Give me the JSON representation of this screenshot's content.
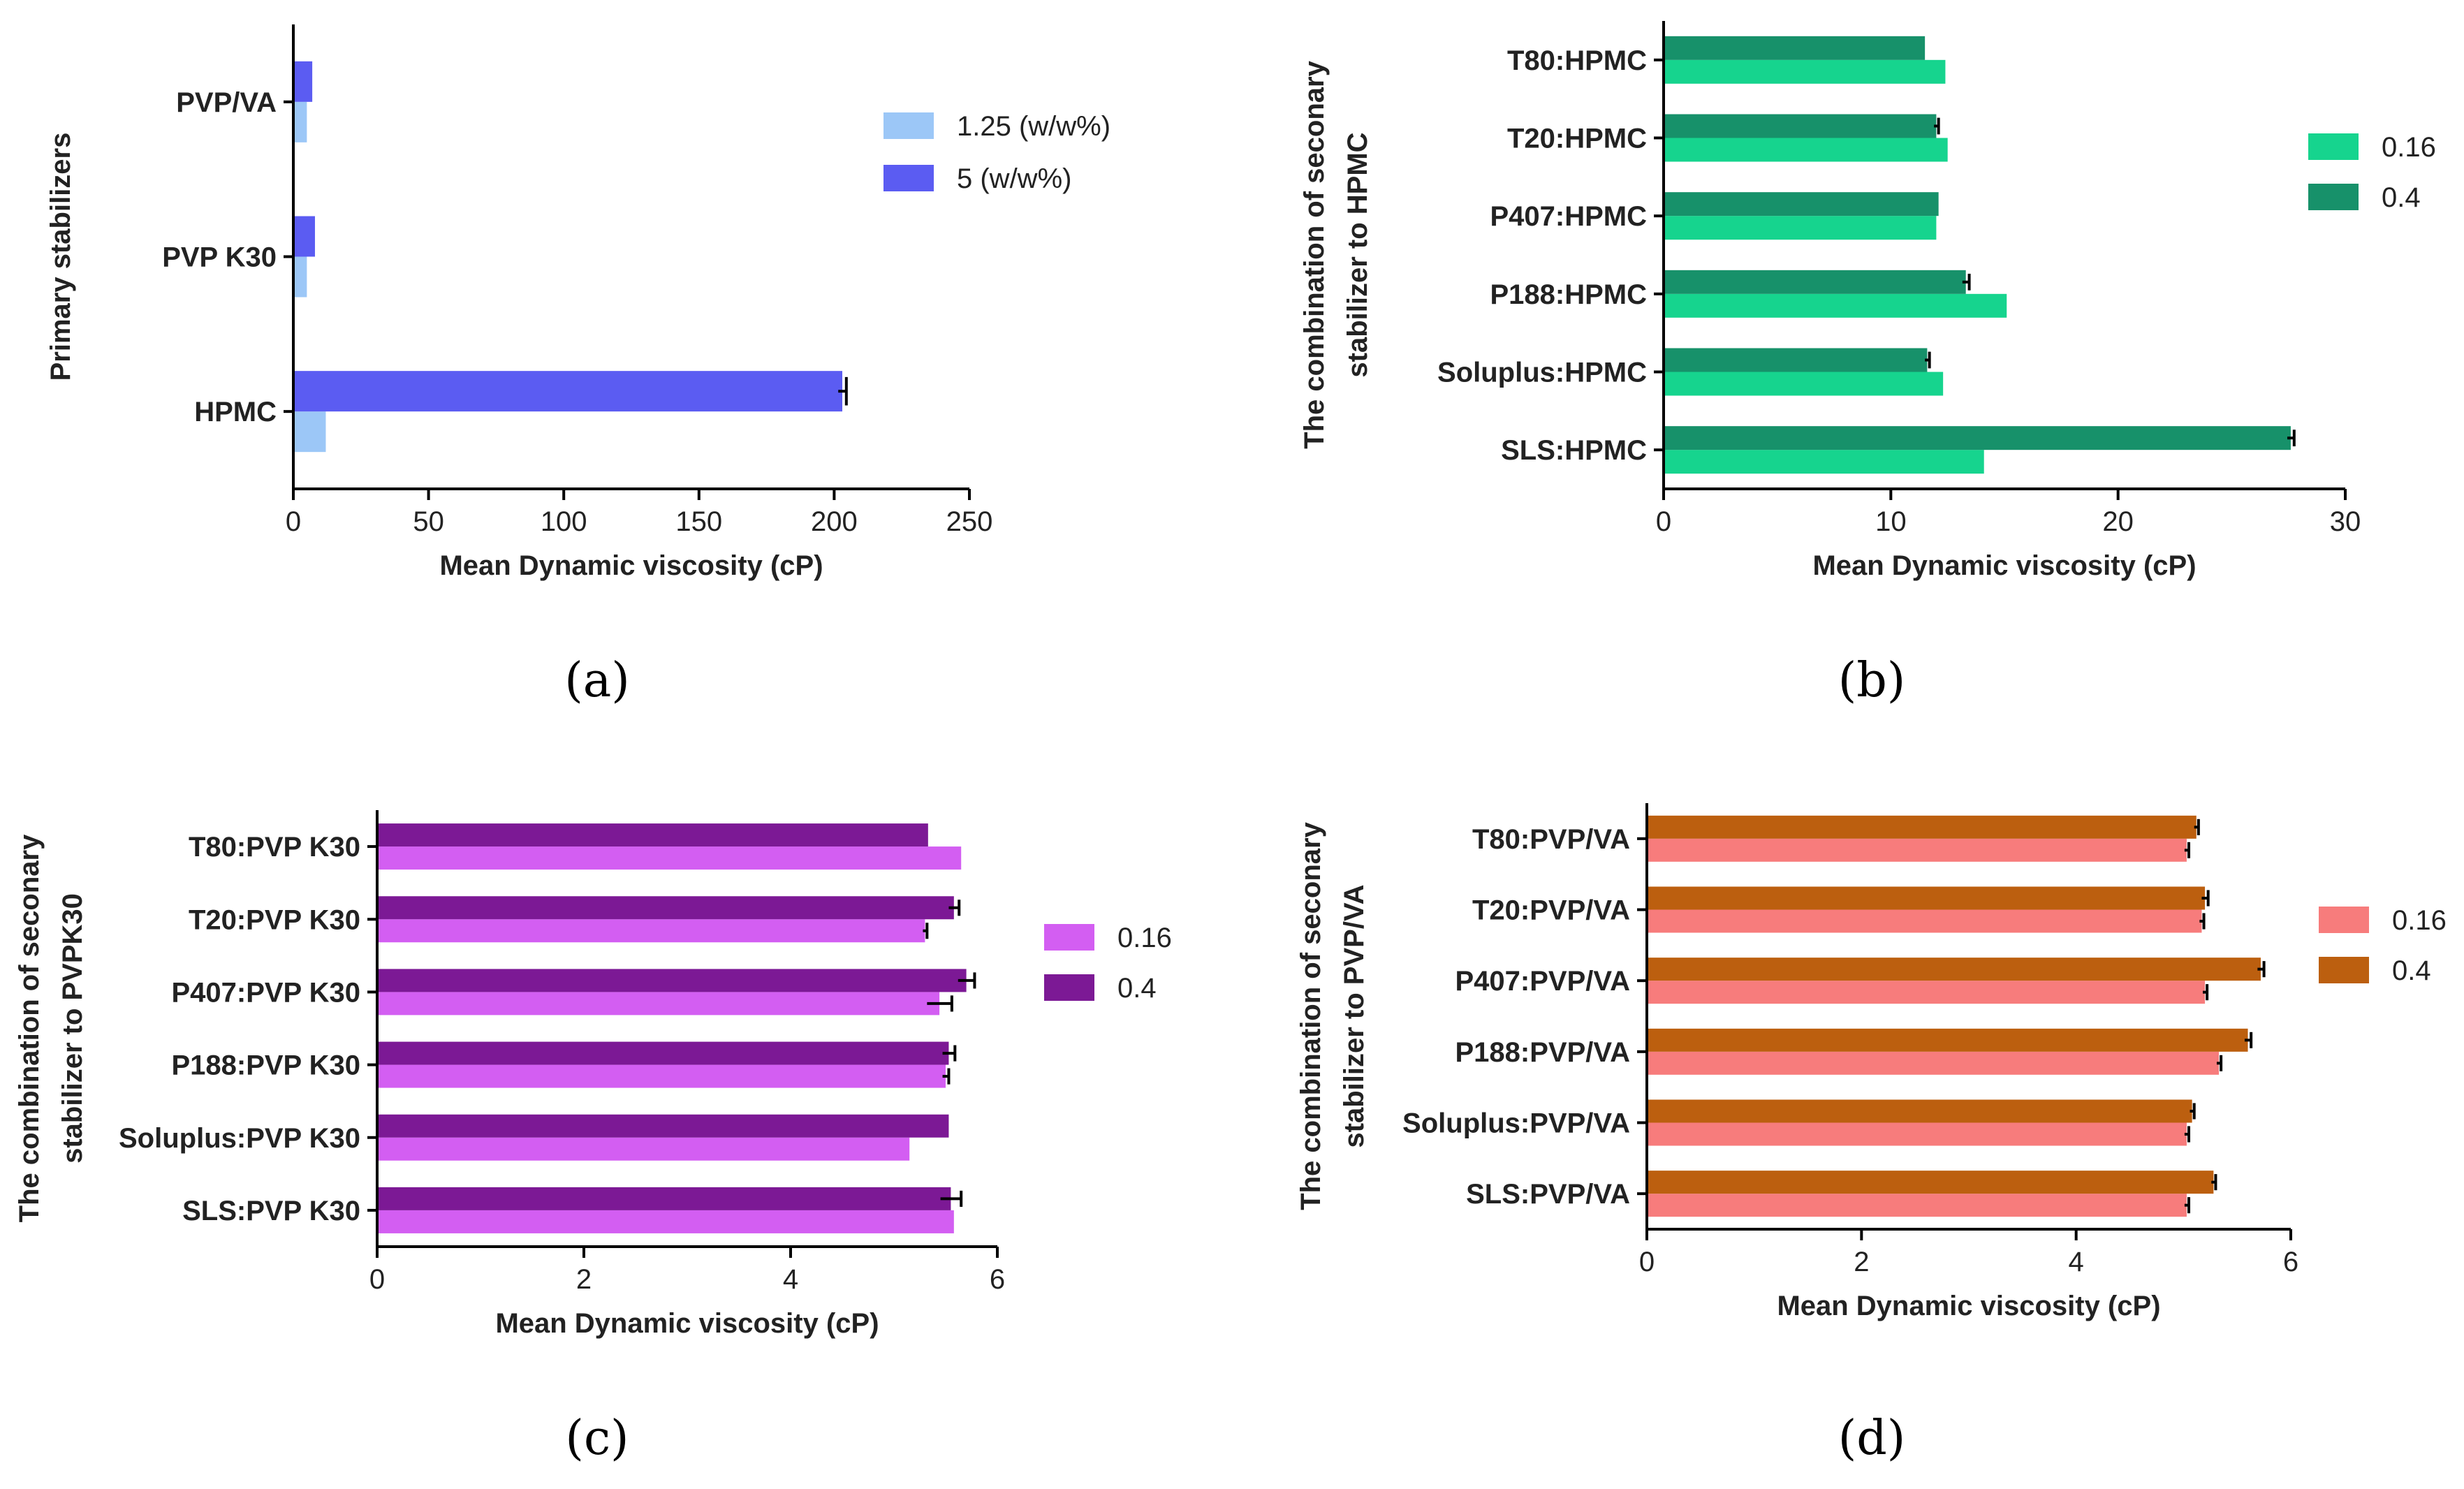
{
  "chart_data": [
    {
      "panel": "(a)",
      "type": "bar",
      "orientation": "horizontal",
      "ylabel": "Primary stabilizers",
      "xlabel": "Mean Dynamic viscosity (cP)",
      "xlim": [
        0,
        250
      ],
      "xticks": [
        0,
        50,
        100,
        150,
        200,
        250
      ],
      "categories": [
        "HPMC",
        "PVP K30",
        "PVP/VA"
      ],
      "series": [
        {
          "name": "1.25 (w/w%)",
          "color": "#9cc7f7",
          "values": [
            12,
            5,
            5
          ],
          "errors": [
            0,
            0,
            0
          ]
        },
        {
          "name": "5 (w/w%)",
          "color": "#5b5cf2",
          "values": [
            203,
            8,
            7
          ],
          "errors": [
            1.5,
            0,
            0
          ]
        }
      ],
      "legend": "right"
    },
    {
      "panel": "(b)",
      "type": "bar",
      "orientation": "horizontal",
      "ylabel": [
        "The combination of seconary",
        "stabilizer to HPMC"
      ],
      "xlabel": "Mean Dynamic viscosity (cP)",
      "xlim": [
        0,
        30
      ],
      "xticks": [
        0,
        10,
        20,
        30
      ],
      "categories": [
        "SLS:HPMC",
        "Soluplus:HPMC",
        "P188:HPMC",
        "P407:HPMC",
        "T20:HPMC",
        "T80:HPMC"
      ],
      "series": [
        {
          "name": "0.16",
          "color": "#16d48e",
          "values": [
            14.1,
            12.3,
            15.1,
            12.0,
            12.5,
            12.4
          ],
          "errors": [
            0,
            0,
            0,
            0,
            0,
            0
          ]
        },
        {
          "name": "0.4",
          "color": "#17916a",
          "values": [
            27.6,
            11.6,
            13.3,
            12.1,
            12.0,
            11.5
          ],
          "errors": [
            0.15,
            0.1,
            0.15,
            0,
            0.1,
            0
          ]
        }
      ],
      "legend": "right"
    },
    {
      "panel": "(c)",
      "type": "bar",
      "orientation": "horizontal",
      "ylabel": [
        "The combination of seconary",
        "stabilizer to PVPK30"
      ],
      "xlabel": "Mean Dynamic viscosity (cP)",
      "xlim": [
        0,
        6
      ],
      "xticks": [
        0,
        2,
        4,
        6
      ],
      "categories": [
        "SLS:PVP K30",
        "Soluplus:PVP K30",
        "P188:PVP K30",
        "P407:PVP K30",
        "T20:PVP K30",
        "T80:PVP K30"
      ],
      "series": [
        {
          "name": "0.16",
          "color": "#d35ef2",
          "values": [
            5.58,
            5.15,
            5.5,
            5.44,
            5.3,
            5.65
          ],
          "errors": [
            0,
            0,
            0.03,
            0.12,
            0.02,
            0
          ]
        },
        {
          "name": "0.4",
          "color": "#7c1995",
          "values": [
            5.55,
            5.53,
            5.53,
            5.7,
            5.58,
            5.33
          ],
          "errors": [
            0.1,
            0,
            0.06,
            0.08,
            0.05,
            0
          ]
        }
      ],
      "legend": "right"
    },
    {
      "panel": "(d)",
      "type": "bar",
      "orientation": "horizontal",
      "ylabel": [
        "The combination of seconary",
        "stabilizer to PVP/VA"
      ],
      "xlabel": "Mean Dynamic viscosity (cP)",
      "xlim": [
        0,
        6
      ],
      "xticks": [
        0,
        2,
        4,
        6
      ],
      "categories": [
        "SLS:PVP/VA",
        "Soluplus:PVP/VA",
        "P188:PVP/VA",
        "P407:PVP/VA",
        "T20:PVP/VA",
        "T80:PVP/VA"
      ],
      "series": [
        {
          "name": "0.16",
          "color": "#f77c7c",
          "values": [
            5.03,
            5.03,
            5.33,
            5.2,
            5.17,
            5.03
          ],
          "errors": [
            0.02,
            0.02,
            0.02,
            0.02,
            0.02,
            0.02
          ]
        },
        {
          "name": "0.4",
          "color": "#bc5f0f",
          "values": [
            5.28,
            5.08,
            5.6,
            5.72,
            5.2,
            5.12
          ],
          "errors": [
            0.02,
            0.02,
            0.03,
            0.03,
            0.03,
            0.02
          ]
        }
      ],
      "legend": "right"
    }
  ]
}
